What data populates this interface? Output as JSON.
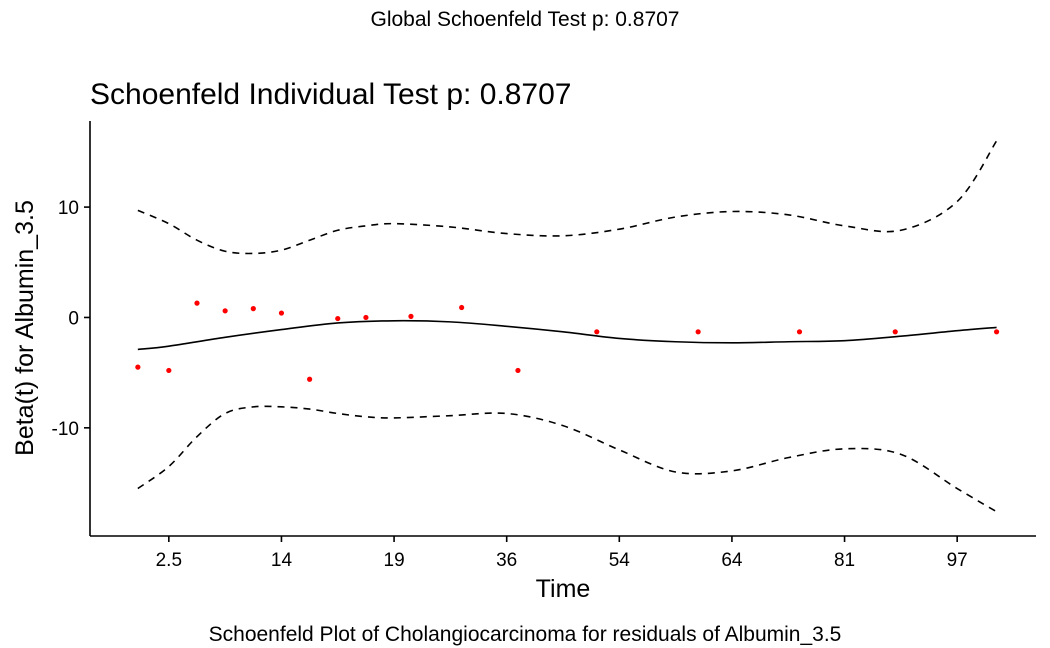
{
  "chart_data": {
    "type": "scatter",
    "global_title": "Global Schoenfeld Test p: 0.8707",
    "title": "Schoenfeld Individual Test p: 0.8707",
    "xlabel": "Time",
    "ylabel": "Beta(t) for Albumin_3.5",
    "caption": "Schoenfeld Plot of Cholangiocarcinoma for residuals of Albumin_3.5",
    "grid": false,
    "x_range": [
      -0.4,
      16.4
    ],
    "ylim": [
      -19.8,
      17.8
    ],
    "x_ticks": [
      {
        "pos": 1,
        "label": "2.5"
      },
      {
        "pos": 3,
        "label": "14"
      },
      {
        "pos": 5,
        "label": "19"
      },
      {
        "pos": 7,
        "label": "36"
      },
      {
        "pos": 9,
        "label": "54"
      },
      {
        "pos": 11,
        "label": "64"
      },
      {
        "pos": 13,
        "label": "81"
      },
      {
        "pos": 15,
        "label": "97"
      }
    ],
    "y_ticks": [
      {
        "value": 10,
        "label": "10"
      },
      {
        "value": 0,
        "label": "0"
      },
      {
        "value": -10,
        "label": "-10"
      }
    ],
    "points": {
      "name": "residuals",
      "color": "#ff0000",
      "x": [
        0.45,
        1.0,
        1.5,
        2.0,
        2.5,
        3.0,
        3.5,
        4.0,
        4.5,
        5.3,
        6.2,
        7.2,
        8.6,
        10.4,
        12.2,
        13.9,
        15.7
      ],
      "y": [
        -4.5,
        -4.8,
        1.3,
        0.6,
        0.8,
        0.4,
        -5.6,
        -0.1,
        0.0,
        0.1,
        0.9,
        -4.8,
        -1.3,
        -1.3,
        -1.3,
        -1.3,
        -1.3
      ]
    },
    "series": [
      {
        "name": "fit",
        "style": "solid",
        "color": "#000000",
        "x": [
          0.45,
          1.0,
          2.0,
          3.0,
          4.0,
          5.0,
          6.0,
          7.0,
          8.0,
          9.0,
          10.0,
          11.0,
          12.0,
          13.0,
          14.0,
          15.0,
          15.7
        ],
        "y": [
          -2.9,
          -2.6,
          -1.8,
          -1.1,
          -0.5,
          -0.3,
          -0.4,
          -0.8,
          -1.3,
          -1.9,
          -2.2,
          -2.3,
          -2.2,
          -2.1,
          -1.7,
          -1.2,
          -0.9
        ]
      },
      {
        "name": "upper",
        "style": "dashed",
        "color": "#000000",
        "x": [
          0.45,
          1.0,
          1.5,
          2.0,
          2.5,
          3.0,
          3.5,
          4.0,
          4.5,
          5.0,
          6.0,
          7.0,
          8.0,
          9.0,
          10.0,
          11.0,
          12.0,
          13.0,
          14.0,
          15.0,
          15.7
        ],
        "y": [
          9.7,
          8.5,
          7.0,
          6.0,
          5.8,
          6.1,
          7.0,
          7.9,
          8.3,
          8.5,
          8.2,
          7.6,
          7.4,
          8.0,
          9.1,
          9.6,
          9.3,
          8.3,
          7.9,
          10.5,
          16.0
        ]
      },
      {
        "name": "lower",
        "style": "dashed",
        "color": "#000000",
        "x": [
          0.45,
          1.0,
          1.5,
          2.0,
          2.5,
          3.0,
          3.5,
          4.0,
          4.5,
          5.0,
          6.0,
          7.0,
          8.0,
          9.0,
          10.0,
          11.0,
          12.0,
          13.0,
          14.0,
          15.0,
          15.7
        ],
        "y": [
          -15.5,
          -13.5,
          -10.8,
          -8.7,
          -8.1,
          -8.1,
          -8.3,
          -8.7,
          -9.0,
          -9.1,
          -8.9,
          -8.7,
          -9.8,
          -12.0,
          -14.0,
          -13.9,
          -12.7,
          -11.9,
          -12.4,
          -15.5,
          -17.6
        ]
      }
    ]
  }
}
